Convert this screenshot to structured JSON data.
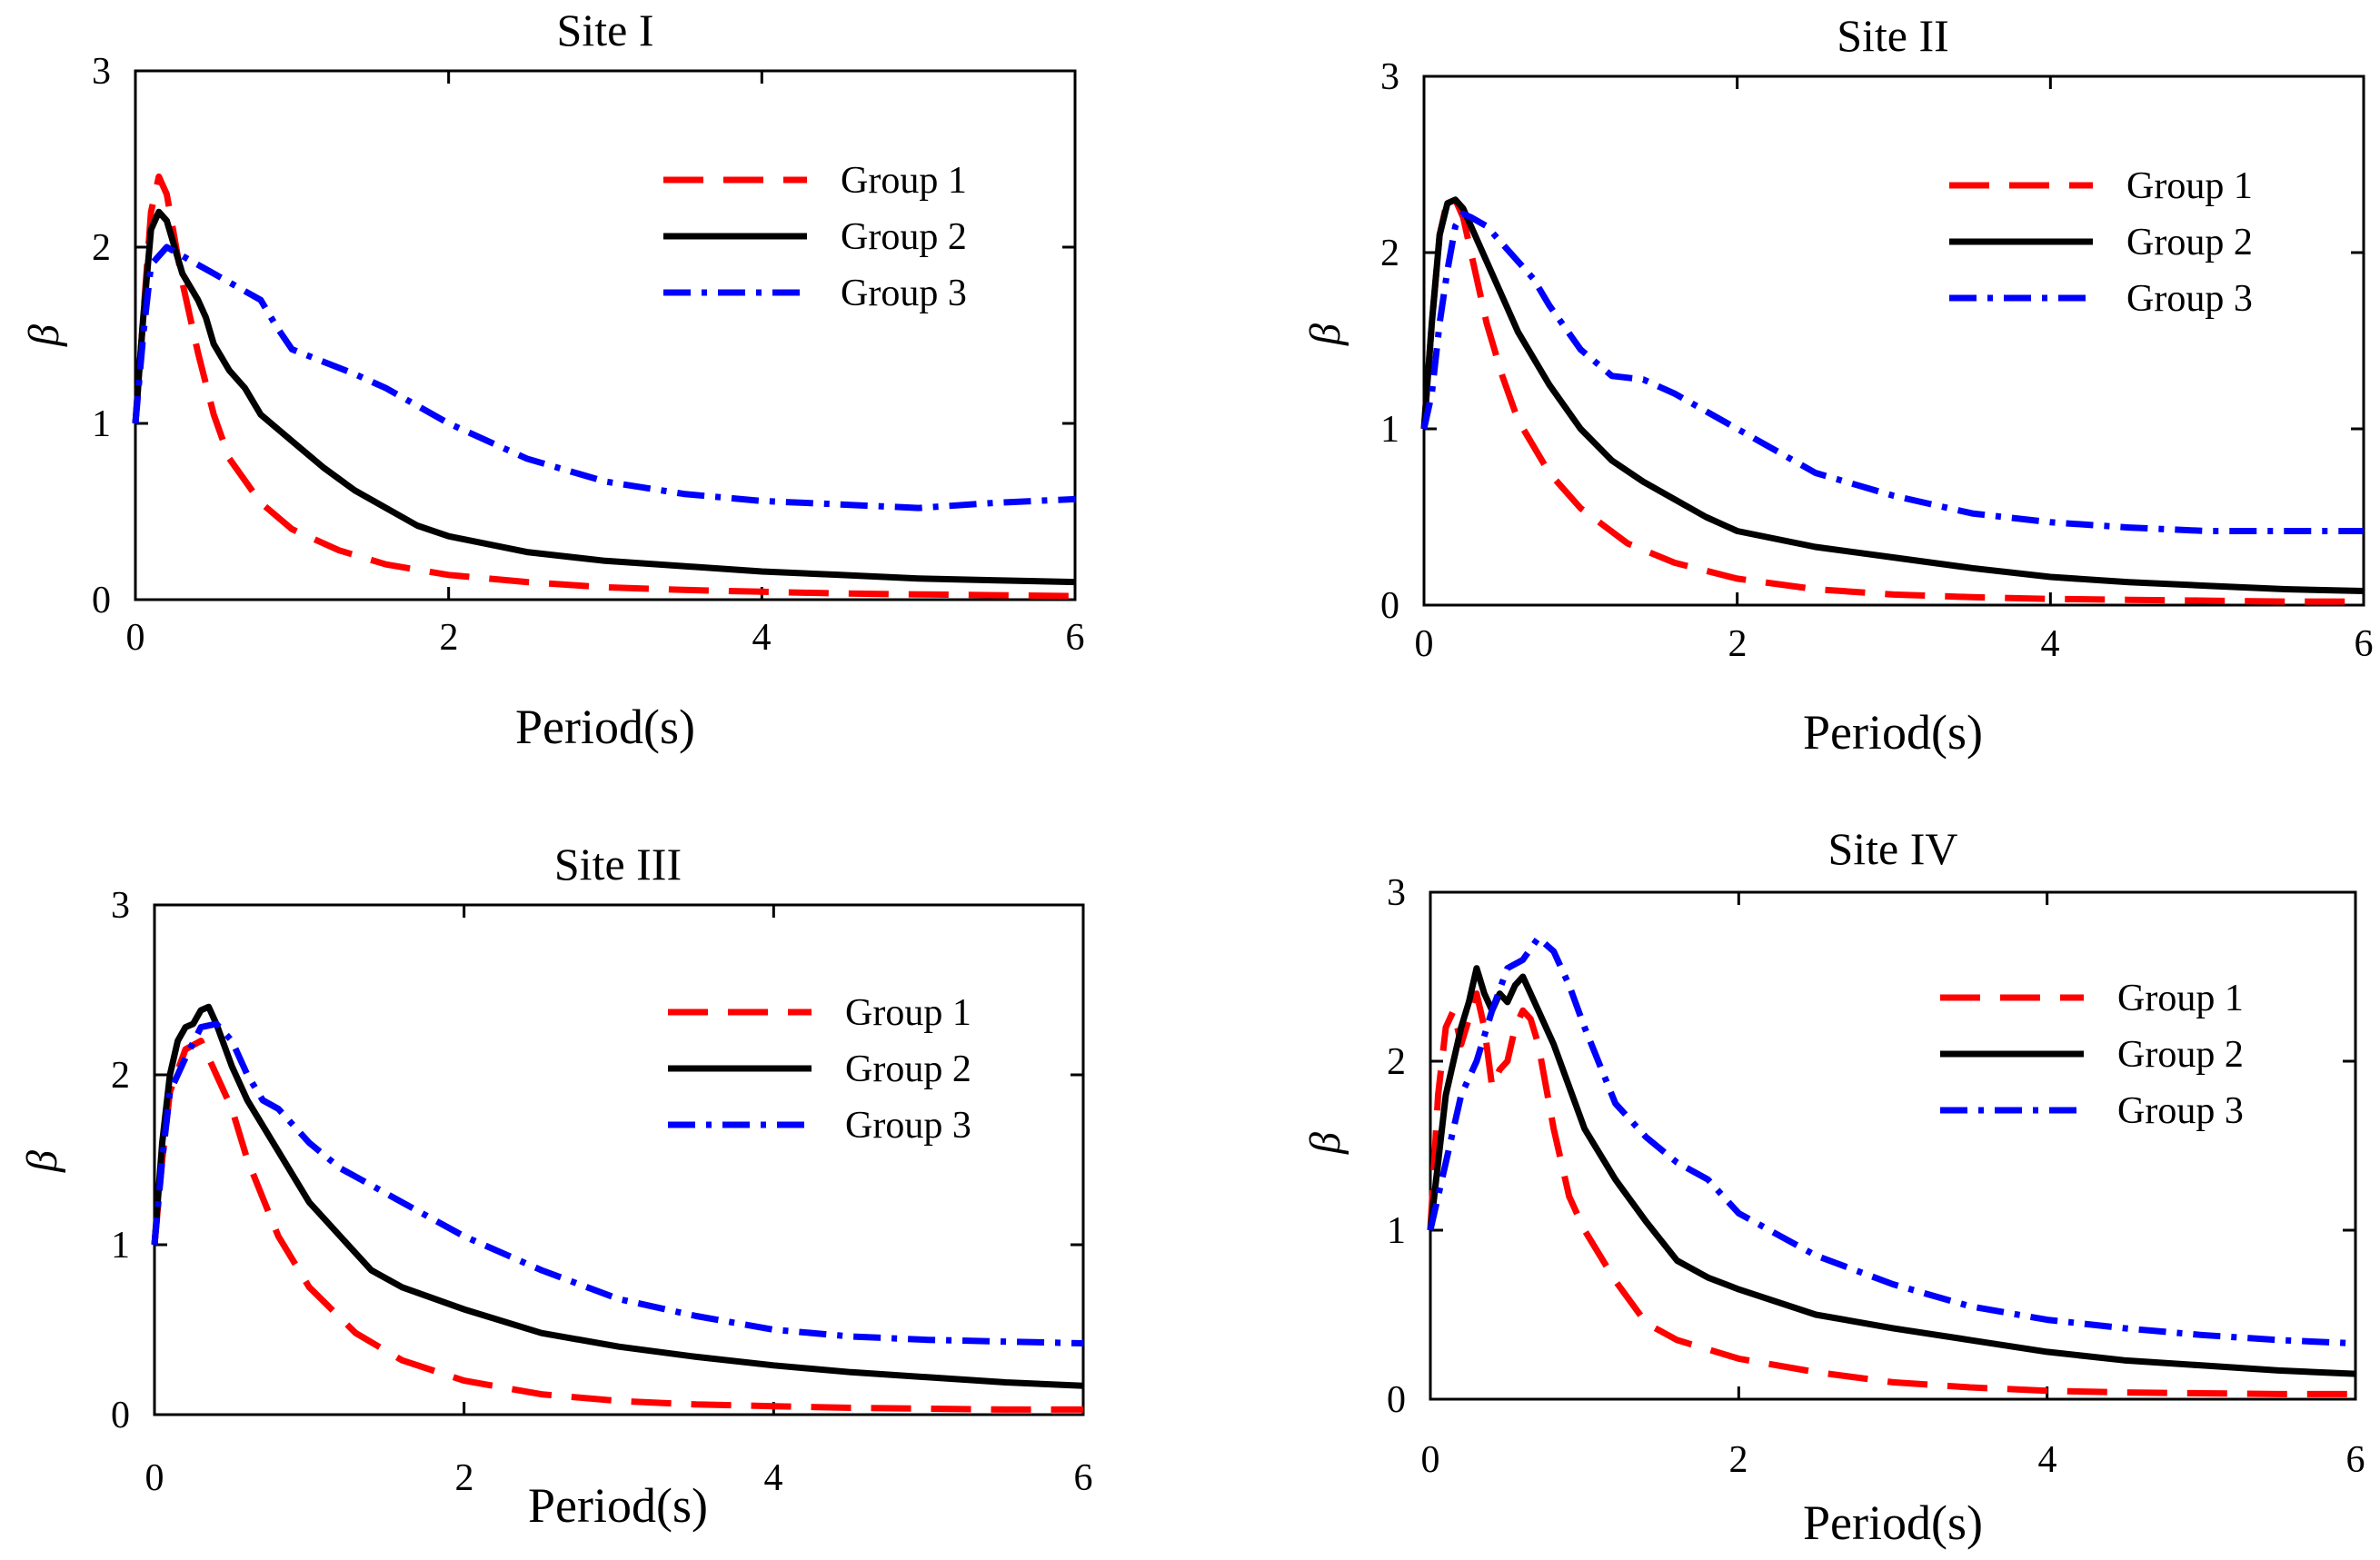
{
  "colors": {
    "group1": "#ff0000",
    "group2": "#000000",
    "group3": "#0000ff"
  },
  "chart_data": [
    {
      "type": "line",
      "title": "Site I",
      "xlabel": "Period(s)",
      "ylabel": "β",
      "xlim": [
        0,
        6
      ],
      "ylim": [
        0,
        3
      ],
      "xticks": [
        "0",
        "2",
        "4",
        "6"
      ],
      "yticks": [
        "0",
        "1",
        "2",
        "3"
      ],
      "legend_location": "top-right",
      "series": [
        {
          "name": "Group 1",
          "style": "dashed",
          "color": "#ff0000",
          "x": [
            0,
            0.05,
            0.1,
            0.15,
            0.2,
            0.25,
            0.3,
            0.4,
            0.5,
            0.6,
            0.8,
            1.0,
            1.3,
            1.6,
            2.0,
            2.5,
            3.0,
            3.5,
            4.0,
            4.5,
            5.0,
            5.5,
            6.0
          ],
          "y": [
            1.0,
            1.6,
            2.2,
            2.4,
            2.3,
            2.05,
            1.8,
            1.4,
            1.05,
            0.8,
            0.55,
            0.4,
            0.28,
            0.2,
            0.14,
            0.1,
            0.07,
            0.055,
            0.045,
            0.035,
            0.03,
            0.025,
            0.02
          ]
        },
        {
          "name": "Group 2",
          "style": "solid",
          "color": "#000000",
          "x": [
            0,
            0.05,
            0.1,
            0.15,
            0.2,
            0.25,
            0.3,
            0.4,
            0.45,
            0.5,
            0.6,
            0.7,
            0.8,
            1.0,
            1.2,
            1.4,
            1.6,
            1.8,
            2.0,
            2.5,
            3.0,
            3.5,
            4.0,
            4.5,
            5.0,
            5.5,
            6.0
          ],
          "y": [
            1.0,
            1.6,
            2.1,
            2.2,
            2.15,
            2.0,
            1.85,
            1.7,
            1.6,
            1.45,
            1.3,
            1.2,
            1.05,
            0.9,
            0.75,
            0.62,
            0.52,
            0.42,
            0.36,
            0.27,
            0.22,
            0.19,
            0.16,
            0.14,
            0.12,
            0.11,
            0.1
          ]
        },
        {
          "name": "Group 3",
          "style": "dashdot",
          "color": "#0000ff",
          "x": [
            0,
            0.05,
            0.1,
            0.2,
            0.3,
            0.4,
            0.5,
            0.6,
            0.7,
            0.8,
            0.9,
            1.0,
            1.2,
            1.4,
            1.6,
            1.8,
            2.0,
            2.5,
            3.0,
            3.5,
            4.0,
            4.5,
            5.0,
            5.5,
            6.0
          ],
          "y": [
            1.0,
            1.5,
            1.9,
            2.0,
            1.95,
            1.9,
            1.85,
            1.8,
            1.75,
            1.7,
            1.55,
            1.42,
            1.35,
            1.28,
            1.2,
            1.1,
            1.0,
            0.8,
            0.67,
            0.6,
            0.56,
            0.54,
            0.52,
            0.55,
            0.57
          ]
        }
      ]
    },
    {
      "type": "line",
      "title": "Site II",
      "xlabel": "Period(s)",
      "ylabel": "β",
      "xlim": [
        0,
        6
      ],
      "ylim": [
        0,
        3
      ],
      "xticks": [
        "0",
        "2",
        "4",
        "6"
      ],
      "yticks": [
        "0",
        "1",
        "2",
        "3"
      ],
      "legend_location": "top-right",
      "series": [
        {
          "name": "Group 1",
          "style": "dashed",
          "color": "#ff0000",
          "x": [
            0,
            0.05,
            0.1,
            0.15,
            0.2,
            0.25,
            0.3,
            0.4,
            0.5,
            0.6,
            0.8,
            1.0,
            1.3,
            1.6,
            2.0,
            2.5,
            3.0,
            3.5,
            4.0,
            4.5,
            5.0,
            5.5,
            6.0
          ],
          "y": [
            1.0,
            1.6,
            2.1,
            2.3,
            2.3,
            2.2,
            2.0,
            1.6,
            1.3,
            1.05,
            0.75,
            0.55,
            0.35,
            0.24,
            0.15,
            0.09,
            0.06,
            0.045,
            0.035,
            0.03,
            0.025,
            0.02,
            0.02
          ]
        },
        {
          "name": "Group 2",
          "style": "solid",
          "color": "#000000",
          "x": [
            0,
            0.05,
            0.1,
            0.15,
            0.2,
            0.25,
            0.3,
            0.4,
            0.5,
            0.6,
            0.8,
            1.0,
            1.2,
            1.4,
            1.6,
            1.8,
            2.0,
            2.5,
            3.0,
            3.5,
            4.0,
            4.5,
            5.0,
            5.5,
            6.0
          ],
          "y": [
            1.0,
            1.6,
            2.1,
            2.28,
            2.3,
            2.25,
            2.15,
            1.95,
            1.75,
            1.55,
            1.25,
            1.0,
            0.82,
            0.7,
            0.6,
            0.5,
            0.42,
            0.33,
            0.27,
            0.21,
            0.16,
            0.13,
            0.11,
            0.09,
            0.08
          ]
        },
        {
          "name": "Group 3",
          "style": "dashdot",
          "color": "#0000ff",
          "x": [
            0,
            0.05,
            0.1,
            0.15,
            0.2,
            0.25,
            0.3,
            0.4,
            0.5,
            0.6,
            0.7,
            0.8,
            1.0,
            1.2,
            1.4,
            1.6,
            1.8,
            2.0,
            2.5,
            3.0,
            3.5,
            4.0,
            4.5,
            5.0,
            5.5,
            6.0
          ],
          "y": [
            1.0,
            1.2,
            1.6,
            1.9,
            2.15,
            2.22,
            2.2,
            2.15,
            2.05,
            1.95,
            1.85,
            1.7,
            1.45,
            1.3,
            1.28,
            1.2,
            1.1,
            1.0,
            0.75,
            0.62,
            0.52,
            0.47,
            0.44,
            0.42,
            0.42,
            0.42
          ]
        }
      ]
    },
    {
      "type": "line",
      "title": "Site III",
      "xlabel": "Period(s)",
      "ylabel": "β",
      "xlim": [
        0,
        6
      ],
      "ylim": [
        0,
        3
      ],
      "xticks": [
        "0",
        "2",
        "4",
        "6"
      ],
      "yticks": [
        "0",
        "1",
        "2",
        "3"
      ],
      "legend_location": "top-right",
      "series": [
        {
          "name": "Group 1",
          "style": "dashed",
          "color": "#ff0000",
          "x": [
            0,
            0.05,
            0.1,
            0.2,
            0.3,
            0.4,
            0.5,
            0.6,
            0.8,
            1.0,
            1.3,
            1.6,
            2.0,
            2.5,
            3.0,
            3.5,
            4.0,
            4.5,
            5.0,
            5.5,
            6.0
          ],
          "y": [
            1.0,
            1.5,
            1.9,
            2.15,
            2.2,
            2.0,
            1.8,
            1.5,
            1.05,
            0.75,
            0.48,
            0.32,
            0.2,
            0.12,
            0.08,
            0.06,
            0.05,
            0.04,
            0.035,
            0.03,
            0.03
          ]
        },
        {
          "name": "Group 2",
          "style": "solid",
          "color": "#000000",
          "x": [
            0,
            0.05,
            0.1,
            0.15,
            0.2,
            0.25,
            0.3,
            0.35,
            0.4,
            0.5,
            0.6,
            0.8,
            1.0,
            1.2,
            1.4,
            1.6,
            2.0,
            2.5,
            3.0,
            3.5,
            4.0,
            4.5,
            5.0,
            5.5,
            6.0
          ],
          "y": [
            1.0,
            1.6,
            2.0,
            2.2,
            2.28,
            2.3,
            2.38,
            2.4,
            2.3,
            2.05,
            1.85,
            1.55,
            1.25,
            1.05,
            0.85,
            0.75,
            0.62,
            0.48,
            0.4,
            0.34,
            0.29,
            0.25,
            0.22,
            0.19,
            0.17
          ]
        },
        {
          "name": "Group 3",
          "style": "dashdot",
          "color": "#0000ff",
          "x": [
            0,
            0.05,
            0.1,
            0.2,
            0.3,
            0.4,
            0.5,
            0.6,
            0.7,
            0.8,
            1.0,
            1.2,
            1.4,
            1.6,
            2.0,
            2.5,
            3.0,
            3.5,
            4.0,
            4.5,
            5.0,
            5.5,
            6.0
          ],
          "y": [
            1.0,
            1.5,
            1.9,
            2.1,
            2.28,
            2.3,
            2.2,
            2.0,
            1.85,
            1.8,
            1.6,
            1.45,
            1.35,
            1.25,
            1.05,
            0.85,
            0.68,
            0.58,
            0.5,
            0.46,
            0.44,
            0.43,
            0.42
          ]
        }
      ]
    },
    {
      "type": "line",
      "title": "Site IV",
      "xlabel": "Period(s)",
      "ylabel": "β",
      "xlim": [
        0,
        6
      ],
      "ylim": [
        0,
        3
      ],
      "xticks": [
        "0",
        "2",
        "4",
        "6"
      ],
      "yticks": [
        "0",
        "1",
        "2",
        "3"
      ],
      "legend_location": "top-right",
      "series": [
        {
          "name": "Group 1",
          "style": "dashed",
          "color": "#ff0000",
          "x": [
            0,
            0.05,
            0.1,
            0.15,
            0.2,
            0.25,
            0.3,
            0.35,
            0.4,
            0.45,
            0.5,
            0.55,
            0.6,
            0.65,
            0.7,
            0.8,
            0.9,
            1.0,
            1.2,
            1.4,
            1.6,
            2.0,
            2.5,
            3.0,
            3.5,
            4.0,
            4.5,
            5.0,
            5.5,
            6.0
          ],
          "y": [
            1.0,
            1.8,
            2.2,
            2.3,
            2.1,
            2.25,
            2.4,
            2.2,
            1.85,
            1.95,
            2.0,
            2.2,
            2.3,
            2.25,
            2.1,
            1.6,
            1.2,
            1.0,
            0.7,
            0.45,
            0.35,
            0.24,
            0.16,
            0.1,
            0.07,
            0.05,
            0.04,
            0.035,
            0.03,
            0.03
          ]
        },
        {
          "name": "Group 2",
          "style": "solid",
          "color": "#000000",
          "x": [
            0,
            0.1,
            0.2,
            0.25,
            0.3,
            0.35,
            0.4,
            0.45,
            0.5,
            0.55,
            0.6,
            0.65,
            0.7,
            0.8,
            0.9,
            1.0,
            1.2,
            1.4,
            1.6,
            1.8,
            2.0,
            2.5,
            3.0,
            3.5,
            4.0,
            4.5,
            5.0,
            5.5,
            6.0
          ],
          "y": [
            1.0,
            1.8,
            2.2,
            2.35,
            2.55,
            2.4,
            2.3,
            2.4,
            2.35,
            2.45,
            2.5,
            2.4,
            2.3,
            2.1,
            1.85,
            1.6,
            1.3,
            1.05,
            0.82,
            0.72,
            0.65,
            0.5,
            0.42,
            0.35,
            0.28,
            0.23,
            0.2,
            0.17,
            0.15
          ]
        },
        {
          "name": "Group 3",
          "style": "dashdot",
          "color": "#0000ff",
          "x": [
            0,
            0.1,
            0.2,
            0.3,
            0.4,
            0.5,
            0.6,
            0.7,
            0.8,
            0.9,
            1.0,
            1.2,
            1.4,
            1.6,
            1.8,
            2.0,
            2.5,
            3.0,
            3.5,
            4.0,
            4.5,
            5.0,
            5.5,
            6.0
          ],
          "y": [
            1.0,
            1.4,
            1.8,
            2.0,
            2.3,
            2.55,
            2.6,
            2.73,
            2.65,
            2.45,
            2.2,
            1.75,
            1.55,
            1.4,
            1.3,
            1.1,
            0.85,
            0.68,
            0.55,
            0.47,
            0.42,
            0.38,
            0.35,
            0.33
          ]
        }
      ]
    }
  ]
}
